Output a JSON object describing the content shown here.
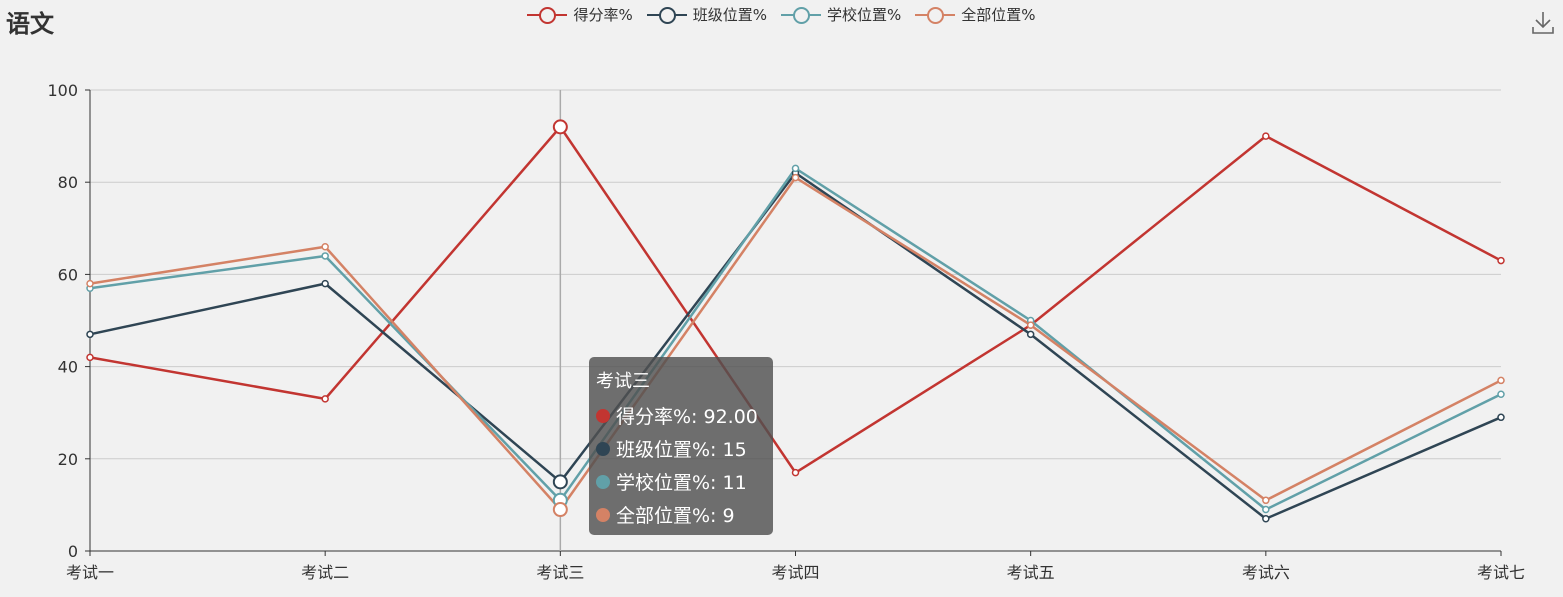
{
  "title": "语文",
  "colors": {
    "score": "#c23531",
    "class": "#2f4554",
    "school": "#61a0a8",
    "all": "#d48265"
  },
  "legend": [
    "得分率%",
    "班级位置%",
    "学校位置%",
    "全部位置%"
  ],
  "toolbar": {
    "download_icon": "download-icon"
  },
  "tooltip": {
    "title": "考试三",
    "rows": [
      {
        "label": "得分率%: 92.00",
        "color": "#c23531"
      },
      {
        "label": "班级位置%: 15",
        "color": "#2f4554"
      },
      {
        "label": "学校位置%: 11",
        "color": "#61a0a8"
      },
      {
        "label": "全部位置%: 9",
        "color": "#d48265"
      }
    ]
  },
  "chart_data": {
    "type": "line",
    "categories": [
      "考试一",
      "考试二",
      "考试三",
      "考试四",
      "考试五",
      "考试六",
      "考试七"
    ],
    "ylim": [
      0,
      100
    ],
    "yticks": [
      0,
      20,
      40,
      60,
      80,
      100
    ],
    "grid": true,
    "legend_position": "top-center",
    "highlighted_index": 2,
    "series": [
      {
        "name": "得分率%",
        "color": "#c23531",
        "values": [
          42,
          33,
          92,
          17,
          49,
          90,
          63
        ]
      },
      {
        "name": "班级位置%",
        "color": "#2f4554",
        "values": [
          47,
          58,
          15,
          82,
          47,
          7,
          29
        ]
      },
      {
        "name": "学校位置%",
        "color": "#61a0a8",
        "values": [
          57,
          64,
          11,
          83,
          50,
          9,
          34
        ]
      },
      {
        "name": "全部位置%",
        "color": "#d48265",
        "values": [
          58,
          66,
          9,
          81,
          49,
          11,
          37
        ]
      }
    ]
  }
}
